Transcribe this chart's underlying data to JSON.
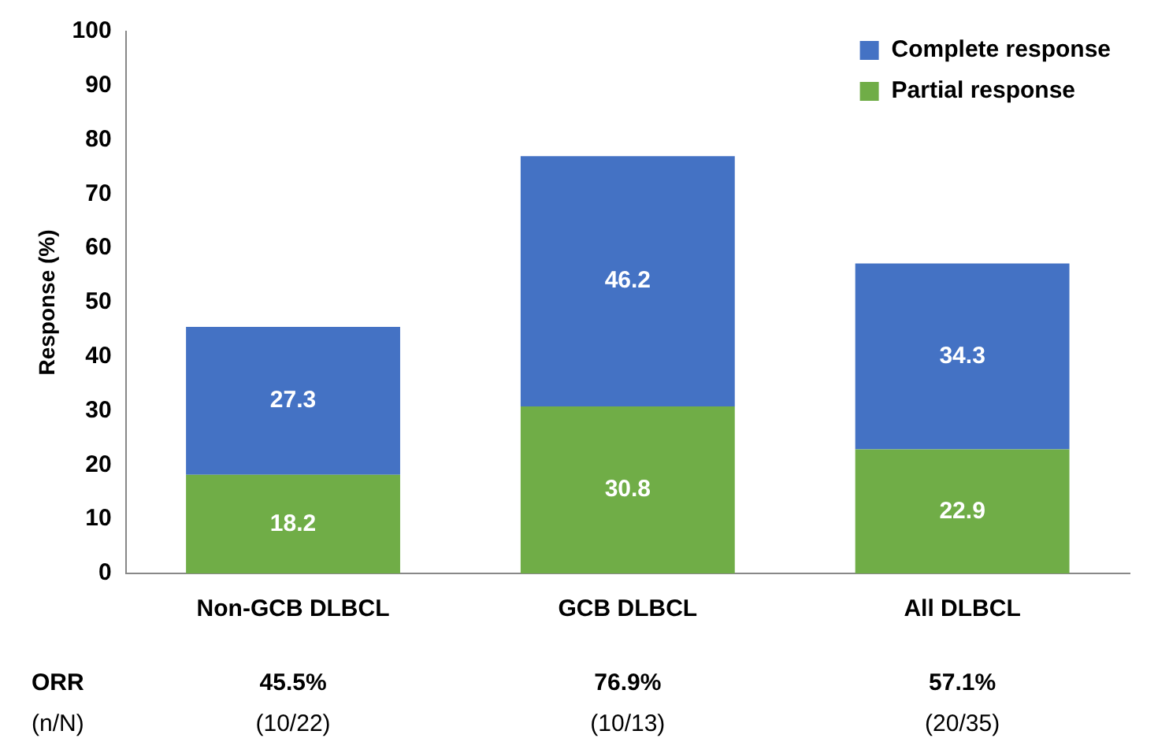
{
  "chart_data": {
    "type": "bar",
    "stacked": true,
    "ylabel": "Response (%)",
    "categories": [
      "Non-GCB DLBCL",
      "GCB DLBCL",
      "All DLBCL"
    ],
    "series": [
      {
        "name": "Partial response",
        "color": "#70ad47",
        "values": [
          18.2,
          30.8,
          22.9
        ]
      },
      {
        "name": "Complete response",
        "color": "#4472c4",
        "values": [
          27.3,
          46.2,
          34.3
        ]
      }
    ],
    "ylim": [
      0,
      100
    ],
    "yticks": [
      0,
      10,
      20,
      30,
      40,
      50,
      60,
      70,
      80,
      90,
      100
    ],
    "grid": false,
    "legend": "top right",
    "data_labels": true,
    "annotations": [
      "ORR",
      "45.5%",
      "76.9%",
      "57.1%",
      "(n/N)",
      "(10/22)",
      "(10/13)",
      "(20/35)"
    ]
  }
}
